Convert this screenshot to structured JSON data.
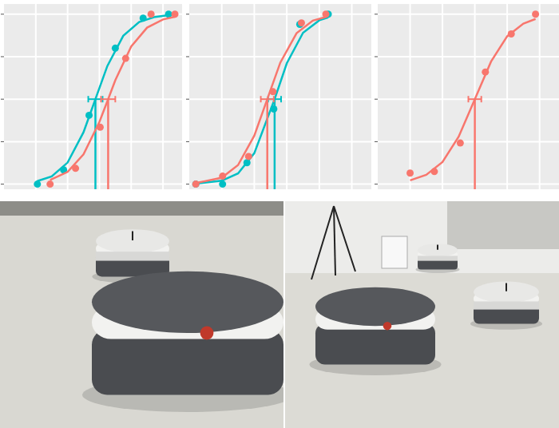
{
  "chart_data": [
    {
      "type": "scatter",
      "grid": true,
      "tick_labels": false,
      "xlim": [
        0,
        5.6
      ],
      "ylim": [
        -0.03,
        1.06
      ],
      "xticks": [
        1,
        2,
        3,
        4,
        5
      ],
      "yticks": [
        0,
        0.25,
        0.5,
        0.75,
        1
      ],
      "series": [
        {
          "color": "#00bfc4",
          "marker": "circle",
          "x": [
            1.05,
            1.875,
            2.675,
            3.5,
            4.375,
            5.175
          ],
          "values": [
            0,
            0.084,
            0.405,
            0.8,
            0.977,
            1.0
          ],
          "fit": {
            "x": [
              1.05,
              1.5,
              2.0,
              2.5,
              2.875,
              3.25,
              3.75,
              4.25,
              4.75,
              5.175
            ],
            "values": [
              0.018,
              0.046,
              0.127,
              0.305,
              0.5,
              0.695,
              0.873,
              0.954,
              0.984,
              0.994
            ]
          },
          "threshold": 2.875,
          "threshold_error": 0.225
        },
        {
          "color": "#f8766d",
          "marker": "circle",
          "x": [
            1.45,
            2.25,
            3.025,
            3.825,
            4.625,
            5.375
          ],
          "values": [
            0,
            0.093,
            0.335,
            0.74,
            1.0,
            1.0
          ],
          "fit": {
            "x": [
              1.45,
              2.0,
              2.5,
              3.0,
              3.275,
              3.5,
              4.0,
              4.5,
              5.0,
              5.375
            ],
            "values": [
              0.025,
              0.072,
              0.175,
              0.366,
              0.5,
              0.611,
              0.81,
              0.921,
              0.969,
              0.985
            ]
          },
          "threshold": 3.275,
          "threshold_error": 0.225
        }
      ]
    },
    {
      "type": "scatter",
      "grid": true,
      "tick_labels": false,
      "xlim": [
        0,
        5.6
      ],
      "ylim": [
        -0.03,
        1.06
      ],
      "xticks": [
        1,
        2,
        3,
        4,
        5
      ],
      "yticks": [
        0,
        0.25,
        0.5,
        0.75,
        1
      ],
      "series": [
        {
          "color": "#00bfc4",
          "marker": "circle",
          "x": [
            0.2,
            1.025,
            1.775,
            2.6,
            3.4,
            4.275
          ],
          "values": [
            0,
            0,
            0.126,
            0.442,
            0.94,
            1.0
          ],
          "fit": {
            "x": [
              0.2,
              1.0,
              1.5,
              2.0,
              2.625,
              3.0,
              3.5,
              4.0,
              4.275
            ],
            "values": [
              0.003,
              0.02,
              0.063,
              0.182,
              0.5,
              0.711,
              0.891,
              0.964,
              0.981
            ]
          },
          "threshold": 2.625,
          "threshold_error": 0.2
        },
        {
          "color": "#f8766d",
          "marker": "circle",
          "x": [
            0.2,
            1.025,
            1.825,
            2.575,
            3.45,
            4.2
          ],
          "values": [
            0,
            0.047,
            0.163,
            0.544,
            0.949,
            1.0
          ],
          "fit": {
            "x": [
              0.2,
              1.0,
              1.5,
              2.0,
              2.4,
              2.8,
              3.3,
              3.8,
              4.2
            ],
            "values": [
              0.006,
              0.038,
              0.112,
              0.285,
              0.5,
              0.715,
              0.888,
              0.962,
              0.984
            ]
          },
          "threshold": 2.4,
          "threshold_error": 0.2
        }
      ]
    },
    {
      "type": "scatter",
      "grid": true,
      "tick_labels": false,
      "xlim": [
        0,
        5.6
      ],
      "ylim": [
        -0.03,
        1.06
      ],
      "xticks": [
        1,
        2,
        3,
        4,
        5
      ],
      "yticks": [
        0,
        0.25,
        0.5,
        0.75,
        1
      ],
      "series": [
        {
          "color": "#f8766d",
          "marker": "circle",
          "x": [
            1.0,
            1.75,
            2.55,
            3.325,
            4.125,
            4.875
          ],
          "values": [
            0.065,
            0.074,
            0.242,
            0.66,
            0.884,
            1.0
          ],
          "fit": {
            "x": [
              1.0,
              1.5,
              2.0,
              2.5,
              3.0,
              3.5,
              4.0,
              4.5,
              4.875
            ],
            "values": [
              0.022,
              0.055,
              0.13,
              0.279,
              0.5,
              0.721,
              0.87,
              0.945,
              0.972
            ]
          },
          "threshold": 3.0,
          "threshold_error": 0.2
        }
      ]
    }
  ]
}
